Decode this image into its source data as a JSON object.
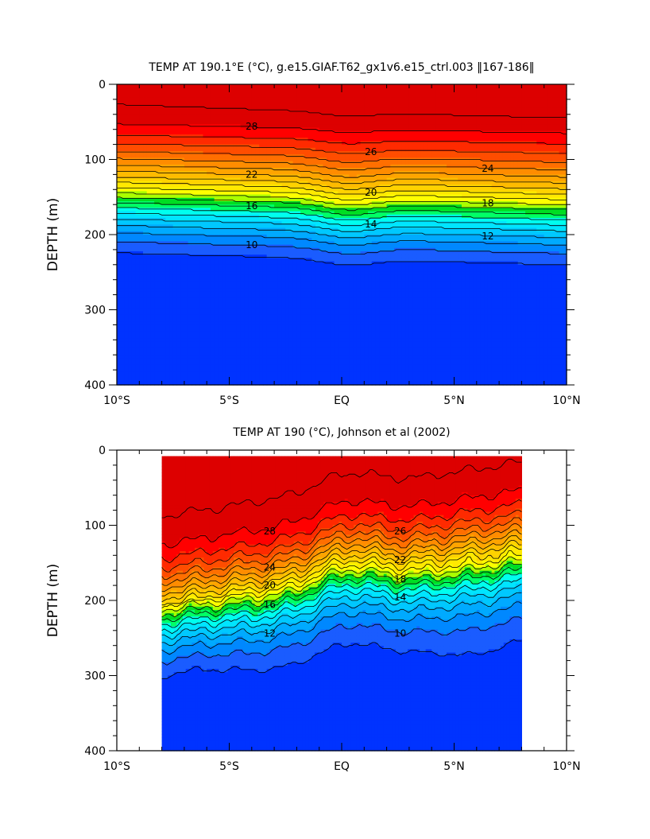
{
  "chart_data": [
    {
      "type": "heatmap",
      "title": "TEMP AT 190.1°E (°C), g.e15.GIAF.T62_gx1v6.e15_ctrl.003 ‖167-186‖",
      "ylabel": "DEPTH (m)",
      "xlabel": "",
      "xlim": [
        -10,
        10
      ],
      "ylim": [
        0,
        400
      ],
      "y_inverted": true,
      "x_ticks": [
        -10,
        -5,
        0,
        5,
        10
      ],
      "x_tick_labels": [
        "10°S",
        "5°S",
        "EQ",
        "5°N",
        "10°N"
      ],
      "y_ticks": [
        0,
        100,
        200,
        300,
        400
      ],
      "y_tick_labels": [
        "0",
        "100",
        "200",
        "300",
        "400"
      ],
      "data_extent_x": [
        -10,
        10
      ],
      "data_extent_y": [
        0,
        400
      ],
      "contour_levels": [
        9,
        10,
        11,
        12,
        13,
        14,
        15,
        16,
        17,
        18,
        19,
        20,
        21,
        22,
        23,
        24,
        25,
        26,
        27,
        28,
        29
      ],
      "contour_labels": [
        "28",
        "26",
        "24",
        "22",
        "20",
        "18",
        "16",
        "14",
        "12",
        "10"
      ],
      "colors": [
        "#0033ff",
        "#1a5cff",
        "#0088ff",
        "#00aaff",
        "#00c8ff",
        "#00e5ff",
        "#00ffee",
        "#00ff66",
        "#00dd22",
        "#aaff00",
        "#ffff00",
        "#ffe900",
        "#ffd200",
        "#ffbb00",
        "#ffa400",
        "#ff8c00",
        "#ff6f00",
        "#ff4d00",
        "#ff2a00",
        "#ff0000",
        "#dd0000"
      ]
    },
    {
      "type": "heatmap",
      "title": "TEMP AT 190 (°C), Johnson et al (2002)",
      "ylabel": "DEPTH (m)",
      "xlabel": "",
      "xlim": [
        -10,
        10
      ],
      "ylim": [
        0,
        400
      ],
      "y_inverted": true,
      "x_ticks": [
        -10,
        -5,
        0,
        5,
        10
      ],
      "x_tick_labels": [
        "10°S",
        "5°S",
        "EQ",
        "5°N",
        "10°N"
      ],
      "y_ticks": [
        0,
        100,
        200,
        300,
        400
      ],
      "y_tick_labels": [
        "0",
        "100",
        "200",
        "300",
        "400"
      ],
      "data_extent_x": [
        -8,
        8
      ],
      "data_extent_y": [
        8,
        400
      ],
      "contour_levels": [
        9,
        10,
        11,
        12,
        13,
        14,
        15,
        16,
        17,
        18,
        19,
        20,
        21,
        22,
        23,
        24,
        25,
        26,
        27,
        28,
        29
      ],
      "contour_labels": [
        "28",
        "26",
        "24",
        "22",
        "20",
        "18",
        "16",
        "14",
        "12",
        "10"
      ],
      "colors": [
        "#0033ff",
        "#1a5cff",
        "#0088ff",
        "#00aaff",
        "#00c8ff",
        "#00e5ff",
        "#00ffee",
        "#00ff66",
        "#00dd22",
        "#aaff00",
        "#ffff00",
        "#ffe900",
        "#ffd200",
        "#ffbb00",
        "#ffa400",
        "#ff8c00",
        "#ff6f00",
        "#ff4d00",
        "#ff2a00",
        "#ff0000",
        "#dd0000"
      ]
    }
  ]
}
